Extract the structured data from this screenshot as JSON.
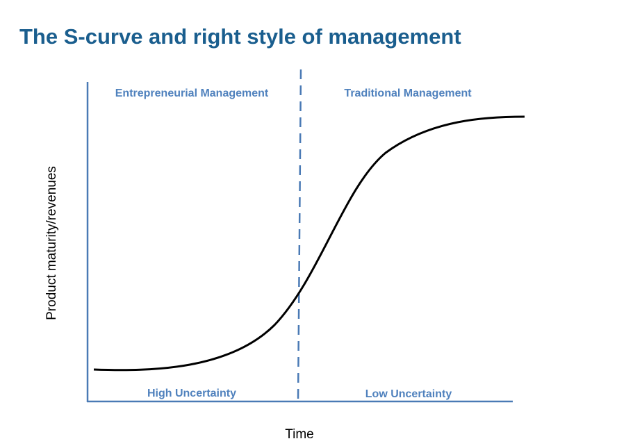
{
  "title": "The S-curve and right style of management",
  "axes": {
    "y_label": "Product maturity/revenues",
    "x_label": "Time"
  },
  "regions": {
    "top_left": "Entrepreneurial Management",
    "top_right": "Traditional Management",
    "bottom_left": "High Uncertainty",
    "bottom_right": "Low Uncertainty"
  }
}
